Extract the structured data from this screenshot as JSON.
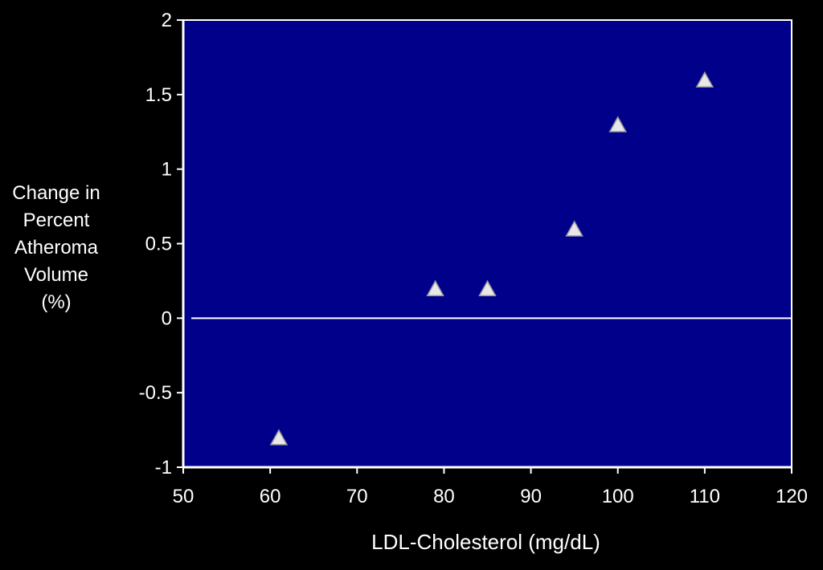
{
  "chart_data": {
    "type": "scatter",
    "title": "",
    "xlabel": "LDL-Cholesterol (mg/dL)",
    "ylabel_lines": [
      "Change in",
      "Percent",
      "Atheroma",
      "Volume",
      "(%)"
    ],
    "xlim": [
      50,
      120
    ],
    "ylim": [
      -1,
      2
    ],
    "xticks": [
      50,
      60,
      70,
      80,
      90,
      100,
      110,
      120
    ],
    "yticks": [
      -1,
      -0.5,
      0,
      0.5,
      1,
      1.5,
      2
    ],
    "ytick_labels": [
      "-1",
      "-0.5",
      "0",
      "0.5",
      "1",
      "1.5",
      "2"
    ],
    "marker": "triangle",
    "grid": false,
    "reference_line_y": 0,
    "points": [
      {
        "x": 61,
        "y": -0.8
      },
      {
        "x": 79,
        "y": 0.2
      },
      {
        "x": 85,
        "y": 0.2
      },
      {
        "x": 95,
        "y": 0.6
      },
      {
        "x": 100,
        "y": 1.3
      },
      {
        "x": 110,
        "y": 1.6
      }
    ]
  },
  "colors": {
    "background": "#000000",
    "plot_area": "#00008b",
    "axis": "#ffffff",
    "marker_fill": "#e8e8e8",
    "marker_stroke": "#9a9a9a"
  }
}
